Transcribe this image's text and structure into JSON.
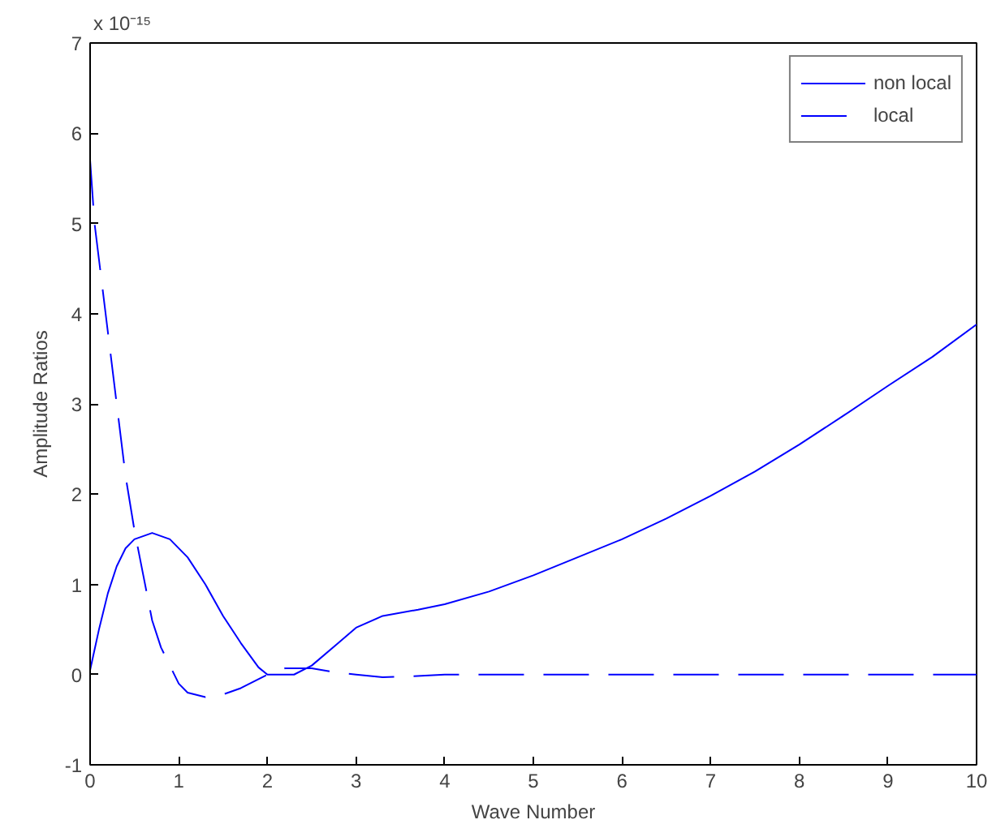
{
  "chart_data": {
    "type": "line",
    "xlabel": "Wave Number",
    "ylabel": "Amplitude Ratios",
    "annotations": [
      "x 10⁻¹⁵"
    ],
    "xlim": [
      0,
      10
    ],
    "ylim": [
      -1,
      7
    ],
    "xticks": [
      0,
      1,
      2,
      3,
      4,
      5,
      6,
      7,
      8,
      9,
      10
    ],
    "yticks": [
      -1,
      0,
      1,
      2,
      3,
      4,
      5,
      6,
      7
    ],
    "legend": "top right",
    "grid": false,
    "series": [
      {
        "name": "non local",
        "color": "#0000ff",
        "line_style": "solid",
        "x": [
          0,
          0.1,
          0.2,
          0.3,
          0.4,
          0.5,
          0.7,
          0.9,
          1.1,
          1.3,
          1.5,
          1.7,
          1.9,
          2.0,
          2.3,
          2.5,
          2.8,
          3.0,
          3.3,
          3.7,
          4.0,
          4.5,
          5,
          5.5,
          6,
          6.5,
          7,
          7.5,
          8,
          8.5,
          9,
          9.5,
          10
        ],
        "values": [
          0.05,
          0.5,
          0.9,
          1.2,
          1.4,
          1.5,
          1.57,
          1.5,
          1.3,
          1.0,
          0.65,
          0.35,
          0.08,
          0.0,
          0.0,
          0.1,
          0.35,
          0.52,
          0.65,
          0.72,
          0.78,
          0.92,
          1.1,
          1.3,
          1.5,
          1.73,
          1.98,
          2.25,
          2.55,
          2.87,
          3.2,
          3.52,
          3.88
        ]
      },
      {
        "name": "local",
        "color": "#0000ff",
        "line_style": "dashed",
        "x": [
          0,
          0.05,
          0.1,
          0.2,
          0.3,
          0.4,
          0.5,
          0.6,
          0.7,
          0.8,
          0.9,
          1.0,
          1.1,
          1.3,
          1.5,
          1.7,
          2.0,
          2.2,
          2.5,
          2.8,
          3.0,
          3.3,
          3.6,
          4,
          10
        ],
        "values": [
          5.7,
          5.0,
          4.6,
          3.8,
          3.0,
          2.2,
          1.6,
          1.1,
          0.6,
          0.3,
          0.1,
          -0.1,
          -0.2,
          -0.25,
          -0.22,
          -0.15,
          0.0,
          0.07,
          0.07,
          0.02,
          0.0,
          -0.03,
          -0.02,
          0,
          0
        ]
      }
    ]
  }
}
